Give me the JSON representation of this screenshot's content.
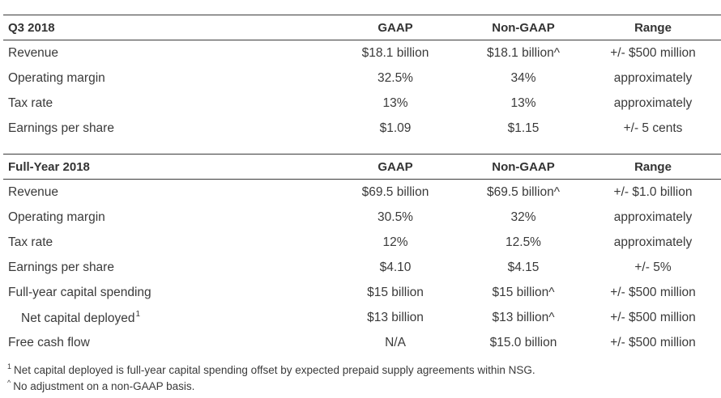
{
  "q3": {
    "header": [
      "Q3 2018",
      "GAAP",
      "Non-GAAP",
      "Range"
    ],
    "rows": [
      [
        "Revenue",
        "$18.1 billion",
        "$18.1 billion^",
        "+/- $500 million"
      ],
      [
        "Operating margin",
        "32.5%",
        "34%",
        "approximately"
      ],
      [
        "Tax rate",
        "13%",
        "13%",
        "approximately"
      ],
      [
        "Earnings per share",
        "$1.09",
        "$1.15",
        "+/- 5 cents"
      ]
    ]
  },
  "fy": {
    "header": [
      "Full-Year 2018",
      "GAAP",
      "Non-GAAP",
      "Range"
    ],
    "rows": [
      [
        "Revenue",
        "$69.5 billion",
        "$69.5 billion^",
        "+/- $1.0 billion"
      ],
      [
        "Operating margin",
        "30.5%",
        "32%",
        "approximately"
      ],
      [
        "Tax rate",
        "12%",
        "12.5%",
        "approximately"
      ],
      [
        "Earnings per share",
        "$4.10",
        "$4.15",
        "+/- 5%"
      ],
      [
        "Full-year capital spending",
        "$15 billion",
        "$15 billion^",
        "+/- $500 million"
      ],
      [
        "Net capital deployed",
        "$13 billion",
        "$13 billion^",
        "+/- $500 million"
      ],
      [
        "Free cash flow",
        "N/A",
        "$15.0 billion",
        "+/- $500 million"
      ]
    ],
    "net_capital_sup": "1"
  },
  "footnotes": {
    "note1_marker": "1",
    "note1": "Net capital deployed is full-year capital spending offset by expected prepaid supply agreements within NSG.",
    "note2_marker": "^",
    "note2": "No adjustment on a non-GAAP basis."
  }
}
